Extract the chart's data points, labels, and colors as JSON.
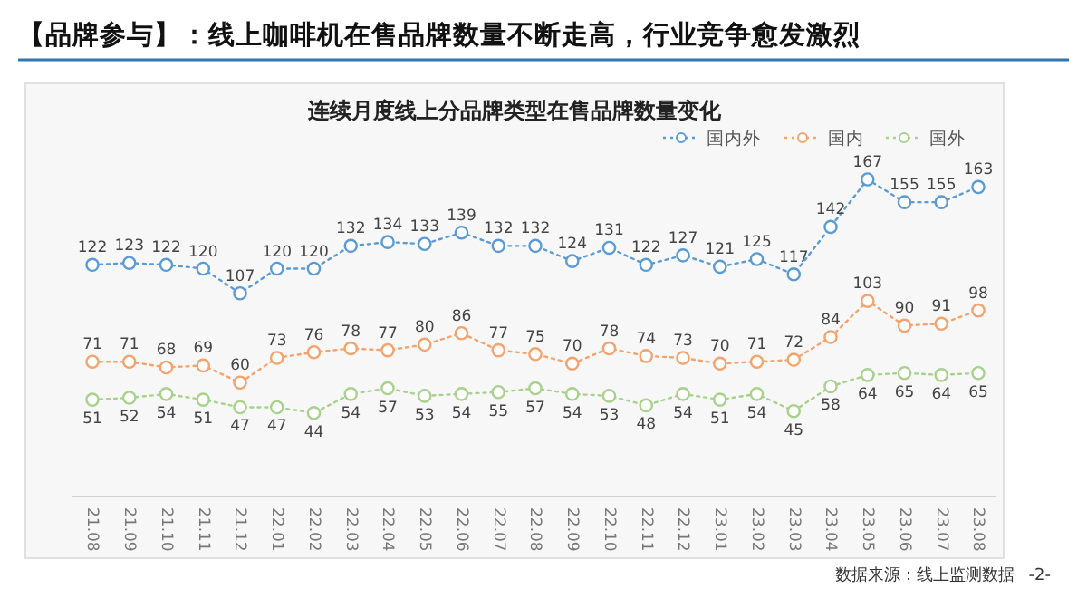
{
  "chart_data": {
    "type": "line",
    "title": "【品牌参与】：线上咖啡机在售品牌数量不断走高，行业竞争愈发激烈",
    "subtitle": "连续月度线上分品牌类型在售品牌数量变化",
    "categories": [
      "21.08",
      "21.09",
      "21.10",
      "21.11",
      "21.12",
      "22.01",
      "22.02",
      "22.03",
      "22.04",
      "22.05",
      "22.06",
      "22.07",
      "22.08",
      "22.09",
      "22.10",
      "22.11",
      "22.12",
      "23.01",
      "23.02",
      "23.03",
      "23.04",
      "23.05",
      "23.06",
      "23.07",
      "23.08"
    ],
    "series": [
      {
        "name": "国内外",
        "color": "#5b9bd5",
        "values": [
          122,
          123,
          122,
          120,
          107,
          120,
          120,
          132,
          134,
          133,
          139,
          132,
          132,
          124,
          131,
          122,
          127,
          121,
          125,
          117,
          142,
          167,
          155,
          155,
          163
        ]
      },
      {
        "name": "国内",
        "color": "#f4a36c",
        "values": [
          71,
          71,
          68,
          69,
          60,
          73,
          76,
          78,
          77,
          80,
          86,
          77,
          75,
          70,
          78,
          74,
          73,
          70,
          71,
          72,
          84,
          103,
          90,
          91,
          98
        ]
      },
      {
        "name": "国外",
        "color": "#a9d18e",
        "values": [
          51,
          52,
          54,
          51,
          47,
          47,
          44,
          54,
          57,
          53,
          54,
          55,
          57,
          54,
          53,
          48,
          54,
          51,
          54,
          45,
          58,
          64,
          65,
          64,
          65
        ]
      }
    ],
    "data_labels": true,
    "marker": "circle",
    "line_style": "dotted",
    "legend": "top right",
    "grid": false,
    "annotations": [
      "数据来源：线上监测数据",
      "-2-"
    ]
  }
}
